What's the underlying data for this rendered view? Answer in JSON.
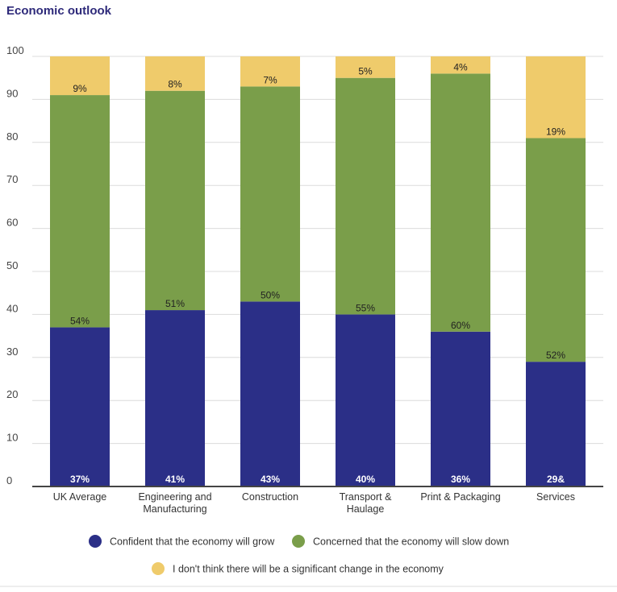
{
  "chart_data": {
    "type": "bar",
    "stacked": true,
    "title": "Economic outlook",
    "categories": [
      [
        "UK Average"
      ],
      [
        "Engineering and",
        "Manufacturing"
      ],
      [
        "Construction"
      ],
      [
        "Transport &",
        "Haulage"
      ],
      [
        "Print & Packaging"
      ],
      [
        "Services"
      ]
    ],
    "ylim": [
      0,
      100
    ],
    "yticks": [
      0,
      10,
      20,
      30,
      40,
      50,
      60,
      70,
      80,
      90,
      100
    ],
    "grid": true,
    "legend_position": "bottom",
    "series": [
      {
        "name": "Confident that the economy will grow",
        "color": "#2b2f87",
        "values": [
          37,
          41,
          43,
          40,
          36,
          29
        ],
        "labels": [
          "37%",
          "41%",
          "43%",
          "40%",
          "36%",
          "29&"
        ]
      },
      {
        "name": "Concerned that the economy will slow down",
        "color": "#7a9e4a",
        "values": [
          54,
          51,
          50,
          55,
          60,
          52
        ],
        "labels": [
          "54%",
          "51%",
          "50%",
          "55%",
          "60%",
          "52%"
        ]
      },
      {
        "name": "I don't think there will be a significant change in the economy",
        "color": "#efcb6b",
        "values": [
          9,
          8,
          7,
          5,
          4,
          19
        ],
        "labels": [
          "9%",
          "8%",
          "7%",
          "5%",
          "4%",
          "19%"
        ]
      }
    ]
  }
}
